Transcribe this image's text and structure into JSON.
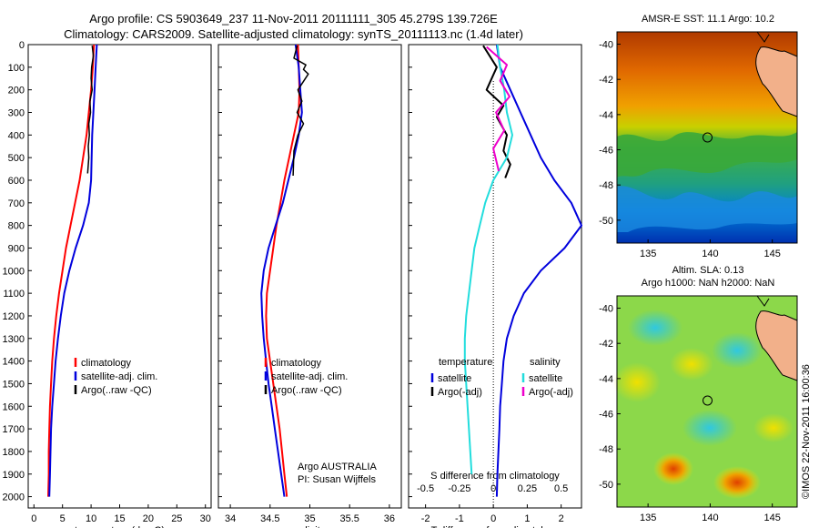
{
  "header": {
    "title_line1": "Argo profile: CS 5903649_237 11-Nov-2011 20111111_305 45.279S 139.726E",
    "title_line2": "Climatology: CARS2009. Satellite-adjusted climatology: synTS_20111113.nc (1.4d later)"
  },
  "side": {
    "sst_title": "AMSR-E SST: 11.1 Argo: 10.2",
    "sla_line1": "Altim. SLA: 0.13",
    "sla_line2": "Argo h1000: NaN h2000: NaN",
    "stamp": "©IMOS 22-Nov-2011 16:00:36"
  },
  "colors": {
    "climatology": "#ff0000",
    "satellite": "#0000dd",
    "argo": "#000000",
    "satellite_s": "#22dddd",
    "argo_s": "#ee00cc"
  },
  "chart_data": [
    {
      "type": "line",
      "xlabel": "temperature (deg C)",
      "ylabel": "",
      "xlim": [
        -1,
        31
      ],
      "ylim": [
        2050,
        0
      ],
      "xticks": [
        "0",
        "5",
        "10",
        "15",
        "20",
        "25",
        "30"
      ],
      "yticks": [
        "0",
        "100",
        "200",
        "300",
        "400",
        "500",
        "600",
        "700",
        "800",
        "900",
        "1000",
        "1100",
        "1200",
        "1300",
        "1400",
        "1500",
        "1600",
        "1700",
        "1800",
        "1900",
        "2000"
      ],
      "legend": [
        "climatology",
        "satellite-adj. clim.",
        "Argo(..raw -QC)"
      ],
      "series": [
        {
          "name": "climatology",
          "x": [
            10.5,
            10.3,
            10,
            9.6,
            9.2,
            8.6,
            8.0,
            7.2,
            6.4,
            5.6,
            5.0,
            4.4,
            3.9,
            3.5,
            3.2,
            3.0,
            2.8,
            2.7,
            2.6,
            2.6,
            2.5
          ],
          "y": [
            0,
            100,
            200,
            300,
            400,
            500,
            600,
            700,
            800,
            900,
            1000,
            1100,
            1200,
            1300,
            1400,
            1500,
            1600,
            1700,
            1800,
            1900,
            2000
          ]
        },
        {
          "name": "satellite-adj. clim.",
          "x": [
            11,
            10.8,
            10.6,
            10.4,
            10.2,
            10.1,
            10,
            9.6,
            8.6,
            7.3,
            6.2,
            5.3,
            4.7,
            4.2,
            3.8,
            3.5,
            3.2,
            3.0,
            2.9,
            2.8,
            2.7
          ],
          "y": [
            0,
            100,
            200,
            300,
            400,
            500,
            600,
            700,
            800,
            900,
            1000,
            1100,
            1200,
            1300,
            1400,
            1500,
            1600,
            1700,
            1800,
            1900,
            2000
          ]
        },
        {
          "name": "Argo(..raw -QC)",
          "x": [
            10.2,
            10.4,
            10.1,
            10.0,
            10.2,
            9.8,
            9.9,
            9.6,
            9.7,
            9.5,
            9.6,
            9.4
          ],
          "y": [
            5,
            50,
            100,
            150,
            200,
            250,
            300,
            350,
            400,
            450,
            500,
            570
          ]
        }
      ]
    },
    {
      "type": "line",
      "xlabel": "salinity",
      "ylabel": "",
      "xlim": [
        33.85,
        36.15
      ],
      "ylim": [
        2050,
        0
      ],
      "xticks": [
        "34",
        "34.5",
        "35",
        "35.5",
        "36"
      ],
      "legend": [
        "climatology",
        "satellite-adj. clim.",
        "Argo(..raw -QC)"
      ],
      "annotation": [
        "Argo AUSTRALIA",
        "PI: Susan Wijffels"
      ],
      "series": [
        {
          "name": "climatology",
          "x": [
            34.85,
            34.86,
            34.87,
            34.86,
            34.8,
            34.74,
            34.68,
            34.63,
            34.58,
            34.54,
            34.5,
            34.46,
            34.45,
            34.46,
            34.5,
            34.54,
            34.58,
            34.62,
            34.65,
            34.68,
            34.71
          ],
          "y": [
            0,
            100,
            200,
            300,
            400,
            500,
            600,
            700,
            800,
            900,
            1000,
            1100,
            1200,
            1300,
            1400,
            1500,
            1600,
            1700,
            1800,
            1900,
            2000
          ]
        },
        {
          "name": "satellite-adj. clim.",
          "x": [
            34.82,
            34.86,
            34.88,
            34.9,
            34.86,
            34.8,
            34.73,
            34.66,
            34.57,
            34.48,
            34.42,
            34.39,
            34.4,
            34.42,
            34.45,
            34.48,
            34.52,
            34.56,
            34.6,
            34.64,
            34.68
          ],
          "y": [
            0,
            100,
            200,
            300,
            400,
            500,
            600,
            700,
            800,
            900,
            1000,
            1100,
            1200,
            1300,
            1400,
            1500,
            1600,
            1700,
            1800,
            1900,
            2000
          ]
        },
        {
          "name": "Argo(..raw -QC)",
          "x": [
            34.84,
            34.8,
            34.95,
            34.92,
            34.98,
            34.85,
            34.9,
            34.84,
            34.92,
            34.85,
            34.8,
            34.79
          ],
          "y": [
            5,
            60,
            90,
            110,
            130,
            200,
            250,
            300,
            350,
            400,
            470,
            580
          ]
        }
      ]
    },
    {
      "type": "line",
      "xlabel": "T difference from climatology",
      "x2label": "S difference from climatology",
      "xlim": [
        -2.5,
        2.6
      ],
      "x2lim": [
        -0.625,
        0.65
      ],
      "ylim": [
        2050,
        0
      ],
      "xticks": [
        "-2",
        "-1",
        "0",
        "1",
        "2"
      ],
      "x2ticks": [
        "-0.5",
        "-0.25",
        "0",
        "0.25",
        "0.5"
      ],
      "legend_left_title": "temperature",
      "legend_right_title": "salinity",
      "legend": [
        "satellite",
        "Argo(-adj)",
        "satellite",
        "Argo(-adj)"
      ],
      "series": [
        {
          "name": "satellite",
          "x": [
            0.1,
            0.2,
            0.5,
            0.8,
            1.1,
            1.4,
            1.8,
            2.3,
            2.6,
            2.1,
            1.4,
            0.9,
            0.6,
            0.4,
            0.3,
            0.25,
            0.2,
            0.18,
            0.15,
            0.12,
            0.1
          ],
          "y": [
            0,
            100,
            200,
            300,
            400,
            500,
            600,
            700,
            800,
            900,
            1000,
            1100,
            1200,
            1300,
            1400,
            1500,
            1600,
            1700,
            1800,
            1900,
            2000
          ]
        },
        {
          "name": "Argo(-adj)",
          "x": [
            -0.3,
            0.1,
            -0.2,
            0.3,
            0.1,
            0.4,
            0.3,
            0.5,
            0.35
          ],
          "y": [
            5,
            100,
            200,
            270,
            320,
            400,
            470,
            530,
            590
          ]
        },
        {
          "name": "satellite",
          "x": [
            0.03,
            0.05,
            0.08,
            0.1,
            0.14,
            0.1,
            0.0,
            -0.06,
            -0.1,
            -0.14,
            -0.16,
            -0.18,
            -0.2,
            -0.21,
            -0.21,
            -0.2,
            -0.19,
            -0.18,
            -0.17,
            -0.16
          ],
          "y": [
            0,
            100,
            200,
            300,
            400,
            500,
            600,
            700,
            800,
            900,
            1000,
            1100,
            1200,
            1300,
            1400,
            1500,
            1600,
            1700,
            1800,
            1900
          ]
        },
        {
          "name": "Argo(-adj)",
          "x": [
            -0.05,
            0.1,
            0.05,
            0.12,
            0.02,
            0.08,
            0.0,
            0.04
          ],
          "y": [
            10,
            90,
            160,
            230,
            300,
            380,
            460,
            560
          ]
        }
      ]
    },
    {
      "type": "heatmap",
      "title": "AMSR-E SST: 11.1 Argo: 10.2",
      "xticks": [
        "135",
        "140",
        "145"
      ],
      "yticks": [
        "-40",
        "-42",
        "-44",
        "-46",
        "-48",
        "-50"
      ],
      "xlim": [
        132.5,
        147
      ],
      "ylim": [
        -51.3,
        -39.3
      ],
      "marker": {
        "lon": 139.726,
        "lat": -45.279
      }
    },
    {
      "type": "heatmap",
      "title": "Altim. SLA: 0.13",
      "xticks": [
        "135",
        "140",
        "145"
      ],
      "yticks": [
        "-40",
        "-42",
        "-44",
        "-46",
        "-48",
        "-50"
      ],
      "xlim": [
        132.5,
        147
      ],
      "ylim": [
        -51.3,
        -39.3
      ],
      "marker": {
        "lon": 139.726,
        "lat": -45.279
      }
    }
  ]
}
